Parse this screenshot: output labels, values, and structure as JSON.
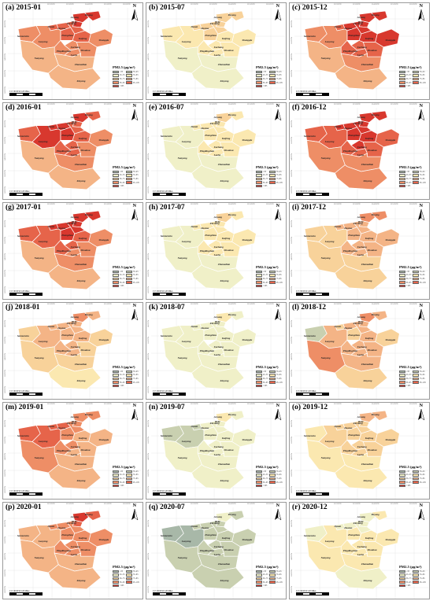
{
  "figure": {
    "legend_title": "PM2.5 (μg/m³)",
    "legend_classes": [
      "≤35",
      "35–45",
      "45–55",
      "55–65",
      "65–75",
      "75–85",
      "85–95",
      "95–105",
      ">105"
    ],
    "class_colors": [
      "#a8b8a8",
      "#c9d0b0",
      "#f0f0c8",
      "#fbe8b0",
      "#f8d29a",
      "#f4b486",
      "#ee8e66",
      "#e6644a",
      "#d8382e"
    ],
    "scale_label": "0  15  30     60     90     120  Miles",
    "north_label": "N",
    "lon_ticks": [
      "110°0'0\"E",
      "111°0'0\"E",
      "112°0'0\"E",
      "113°0'0\"E",
      "114°0'0\"E",
      "115°0'0\"E",
      "116°0'0\"E"
    ],
    "lat_ticks": [
      "36°0'0\"N",
      "35°0'0\"N",
      "34°0'0\"N",
      "33°0'0\"N",
      "32°0'0\"N"
    ],
    "cities": [
      "Anyang",
      "Puyang",
      "Hebi",
      "Jiyuan",
      "Jiaozuo",
      "Xinxiang",
      "Sanmenxia",
      "Zhengzhou",
      "Kaifeng",
      "Luoyang",
      "Shangqiu",
      "Xuchang",
      "Pingdingshan",
      "Luohe",
      "Zhoukou",
      "Nanyang",
      "Zhumadian",
      "Xinyang"
    ]
  },
  "panels": [
    {
      "label": "(a) 2015-01",
      "levels": [
        8,
        8,
        8,
        7,
        7,
        7,
        6,
        7,
        7,
        6,
        6,
        6,
        6,
        6,
        6,
        5,
        5,
        5
      ]
    },
    {
      "label": "(b) 2015-07",
      "levels": [
        4,
        4,
        4,
        4,
        4,
        4,
        3,
        4,
        3,
        3,
        3,
        3,
        3,
        3,
        3,
        2,
        2,
        2
      ]
    },
    {
      "label": "(c) 2015-12",
      "levels": [
        8,
        8,
        8,
        7,
        8,
        8,
        6,
        8,
        8,
        6,
        8,
        7,
        7,
        7,
        7,
        5,
        6,
        5
      ]
    },
    {
      "label": "(d) 2016-01",
      "levels": [
        8,
        7,
        7,
        8,
        8,
        7,
        7,
        8,
        7,
        8,
        6,
        7,
        7,
        7,
        6,
        5,
        6,
        5
      ]
    },
    {
      "label": "(e) 2016-07",
      "levels": [
        4,
        3,
        3,
        3,
        3,
        3,
        2,
        3,
        3,
        2,
        3,
        3,
        3,
        3,
        3,
        2,
        2,
        2
      ]
    },
    {
      "label": "(f) 2016-12",
      "levels": [
        8,
        8,
        8,
        8,
        8,
        8,
        7,
        8,
        8,
        7,
        7,
        8,
        7,
        7,
        7,
        6,
        6,
        6
      ]
    },
    {
      "label": "(g) 2017-01",
      "levels": [
        8,
        8,
        8,
        8,
        8,
        8,
        7,
        8,
        7,
        7,
        6,
        7,
        7,
        6,
        6,
        5,
        6,
        5
      ]
    },
    {
      "label": "(h) 2017-07",
      "levels": [
        4,
        3,
        3,
        3,
        3,
        3,
        2,
        3,
        3,
        2,
        3,
        3,
        3,
        3,
        3,
        2,
        2,
        2
      ]
    },
    {
      "label": "(i) 2017-12",
      "levels": [
        6,
        6,
        5,
        5,
        5,
        5,
        4,
        5,
        5,
        4,
        5,
        5,
        5,
        5,
        5,
        4,
        4,
        4
      ]
    },
    {
      "label": "(j) 2018-01",
      "levels": [
        6,
        5,
        5,
        5,
        5,
        5,
        4,
        5,
        5,
        5,
        4,
        5,
        5,
        5,
        4,
        4,
        4,
        3
      ]
    },
    {
      "label": "(k) 2018-07",
      "levels": [
        3,
        2,
        2,
        2,
        2,
        2,
        2,
        2,
        2,
        2,
        2,
        2,
        2,
        2,
        2,
        2,
        2,
        2
      ]
    },
    {
      "label": "(l) 2018-12",
      "levels": [
        6,
        5,
        5,
        4,
        5,
        5,
        1,
        4,
        5,
        5,
        4,
        5,
        5,
        5,
        5,
        6,
        5,
        4
      ]
    },
    {
      "label": "(m) 2019-01",
      "levels": [
        6,
        6,
        6,
        7,
        7,
        6,
        7,
        6,
        5,
        7,
        5,
        6,
        6,
        5,
        5,
        6,
        5,
        5
      ]
    },
    {
      "label": "(n) 2019-07",
      "levels": [
        3,
        2,
        2,
        1,
        2,
        2,
        1,
        2,
        2,
        1,
        2,
        2,
        2,
        2,
        2,
        2,
        2,
        2
      ]
    },
    {
      "label": "(o) 2019-12",
      "levels": [
        5,
        5,
        4,
        4,
        4,
        4,
        3,
        4,
        4,
        4,
        4,
        4,
        4,
        4,
        4,
        3,
        3,
        3
      ]
    },
    {
      "label": "(p) 2020-01",
      "levels": [
        8,
        7,
        7,
        6,
        6,
        6,
        5,
        6,
        6,
        5,
        6,
        6,
        6,
        6,
        6,
        5,
        5,
        5
      ]
    },
    {
      "label": "(q) 2020-07",
      "levels": [
        2,
        1,
        1,
        1,
        1,
        1,
        0,
        1,
        1,
        0,
        1,
        1,
        1,
        1,
        1,
        1,
        1,
        1
      ]
    },
    {
      "label": "(r) 2020-12",
      "levels": [
        2,
        3,
        2,
        2,
        2,
        2,
        2,
        3,
        3,
        3,
        3,
        3,
        3,
        3,
        3,
        3,
        3,
        2
      ]
    }
  ]
}
